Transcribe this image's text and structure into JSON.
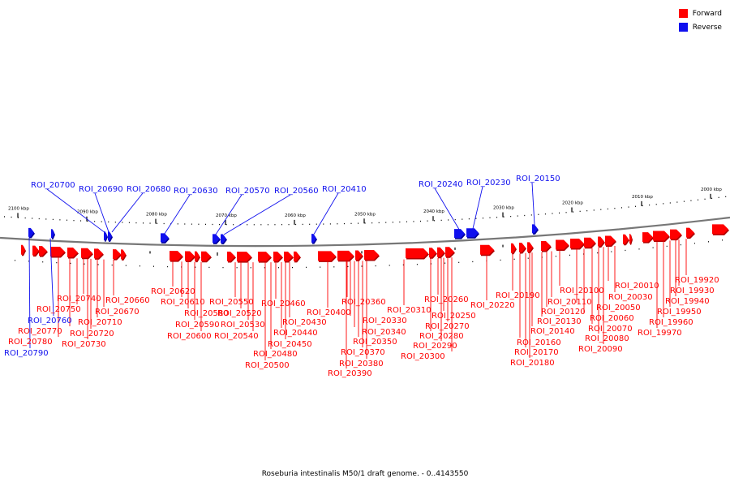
{
  "colors": {
    "forward": "#ff0000",
    "reverse": "#1010ee",
    "backbone": "#777777",
    "tick": "#000000"
  },
  "legend": [
    {
      "label": "Forward",
      "color": "#ff0000"
    },
    {
      "label": "Reverse",
      "color": "#1010ee"
    }
  ],
  "caption": "Roseburia intestinalis M50/1 draft genome. - 0..4143550",
  "chart_data": {
    "type": "linear genome map",
    "units": "kbp",
    "scale_labels": [
      "2100 kbp",
      "2090 kbp",
      "2080 kbp",
      "2070 kbp",
      "2060 kbp",
      "2050 kbp",
      "2040 kbp",
      "2030 kbp",
      "2020 kbp",
      "2010 kbp",
      "2000 kbp"
    ],
    "forward_labels": [
      "ROI_20740",
      "ROI_20750",
      "ROI_20770",
      "ROI_20780",
      "ROI_20710",
      "ROI_20720",
      "ROI_20730",
      "ROI_20670",
      "ROI_20660",
      "ROI_20620",
      "ROI_20610",
      "ROI_20580",
      "ROI_20590",
      "ROI_20600",
      "ROI_20550",
      "ROI_20520",
      "ROI_20530",
      "ROI_20540",
      "ROI_20460",
      "ROI_20430",
      "ROI_20440",
      "ROI_20450",
      "ROI_20480",
      "ROI_20500",
      "ROI_20400",
      "ROI_20360",
      "ROI_20330",
      "ROI_20340",
      "ROI_20350",
      "ROI_20370",
      "ROI_20380",
      "ROI_20390",
      "ROI_20310",
      "ROI_20260",
      "ROI_20250",
      "ROI_20270",
      "ROI_20280",
      "ROI_20290",
      "ROI_20300",
      "ROI_20220",
      "ROI_20190",
      "ROI_20160",
      "ROI_20170",
      "ROI_20180",
      "ROI_20140",
      "ROI_20130",
      "ROI_20120",
      "ROI_20110",
      "ROI_20100",
      "ROI_20050",
      "ROI_20060",
      "ROI_20070",
      "ROI_20080",
      "ROI_20090",
      "ROI_20010",
      "ROI_20030",
      "ROI_19920",
      "ROI_19930",
      "ROI_19940",
      "ROI_19950",
      "ROI_19960",
      "ROI_19970"
    ],
    "reverse_labels": [
      "ROI_20700",
      "ROI_20690",
      "ROI_20680",
      "ROI_20630",
      "ROI_20570",
      "ROI_20560",
      "ROI_20410",
      "ROI_20240",
      "ROI_20230",
      "ROI_20150",
      "ROI_20760",
      "ROI_20790"
    ]
  }
}
